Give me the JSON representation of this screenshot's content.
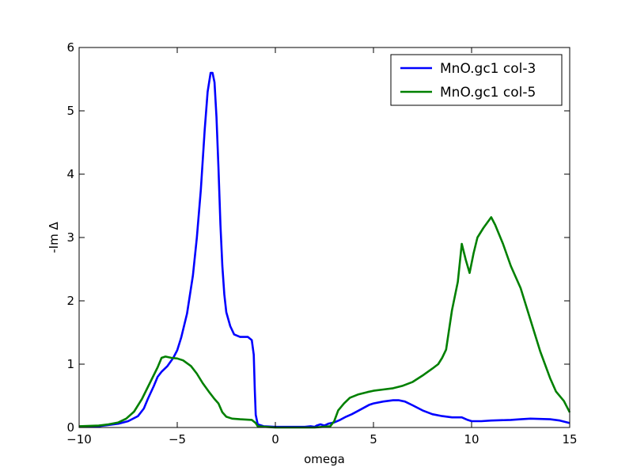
{
  "chart_data": {
    "type": "line",
    "title": "",
    "xlabel": "omega",
    "ylabel": "-Im Δ",
    "xlim": [
      -10,
      15
    ],
    "ylim": [
      0,
      6
    ],
    "xticks": [
      -10,
      -5,
      0,
      5,
      10,
      15
    ],
    "yticks": [
      0,
      1,
      2,
      3,
      4,
      5,
      6
    ],
    "xtick_labels": [
      "−10",
      "−5",
      "0",
      "5",
      "10",
      "15"
    ],
    "ytick_labels": [
      "0",
      "1",
      "2",
      "3",
      "4",
      "5",
      "6"
    ],
    "grid": false,
    "legend_position": "top-right",
    "series": [
      {
        "name": "MnO.gc1 col-3",
        "color": "#0000ff",
        "points": [
          [
            -10,
            0.01
          ],
          [
            -9,
            0.02
          ],
          [
            -8.5,
            0.04
          ],
          [
            -8,
            0.06
          ],
          [
            -7.5,
            0.1
          ],
          [
            -7,
            0.18
          ],
          [
            -6.7,
            0.3
          ],
          [
            -6.5,
            0.45
          ],
          [
            -6.2,
            0.65
          ],
          [
            -6.0,
            0.8
          ],
          [
            -5.8,
            0.88
          ],
          [
            -5.5,
            0.97
          ],
          [
            -5.2,
            1.1
          ],
          [
            -5.0,
            1.22
          ],
          [
            -4.8,
            1.42
          ],
          [
            -4.5,
            1.8
          ],
          [
            -4.2,
            2.4
          ],
          [
            -4.0,
            3.0
          ],
          [
            -3.8,
            3.75
          ],
          [
            -3.6,
            4.7
          ],
          [
            -3.45,
            5.3
          ],
          [
            -3.3,
            5.6
          ],
          [
            -3.2,
            5.6
          ],
          [
            -3.1,
            5.45
          ],
          [
            -3.0,
            4.9
          ],
          [
            -2.9,
            4.1
          ],
          [
            -2.8,
            3.2
          ],
          [
            -2.7,
            2.55
          ],
          [
            -2.6,
            2.1
          ],
          [
            -2.5,
            1.82
          ],
          [
            -2.3,
            1.6
          ],
          [
            -2.1,
            1.47
          ],
          [
            -1.8,
            1.43
          ],
          [
            -1.4,
            1.43
          ],
          [
            -1.2,
            1.38
          ],
          [
            -1.1,
            1.15
          ],
          [
            -1.05,
            0.6
          ],
          [
            -1.0,
            0.2
          ],
          [
            -0.9,
            0.05
          ],
          [
            -0.6,
            0.02
          ],
          [
            0,
            0.01
          ],
          [
            1.0,
            0.01
          ],
          [
            1.5,
            0.01
          ],
          [
            1.8,
            0.02
          ],
          [
            2.0,
            0.01
          ],
          [
            2.1,
            0.03
          ],
          [
            2.3,
            0.05
          ],
          [
            2.5,
            0.03
          ],
          [
            2.7,
            0.06
          ],
          [
            3.0,
            0.08
          ],
          [
            3.3,
            0.12
          ],
          [
            3.6,
            0.17
          ],
          [
            3.9,
            0.21
          ],
          [
            4.2,
            0.26
          ],
          [
            4.5,
            0.31
          ],
          [
            4.8,
            0.36
          ],
          [
            5.0,
            0.38
          ],
          [
            5.5,
            0.41
          ],
          [
            6.0,
            0.43
          ],
          [
            6.3,
            0.43
          ],
          [
            6.6,
            0.41
          ],
          [
            7.0,
            0.35
          ],
          [
            7.5,
            0.27
          ],
          [
            8.0,
            0.21
          ],
          [
            8.5,
            0.18
          ],
          [
            9.0,
            0.16
          ],
          [
            9.5,
            0.16
          ],
          [
            9.8,
            0.12
          ],
          [
            10.0,
            0.1
          ],
          [
            10.5,
            0.1
          ],
          [
            11.0,
            0.11
          ],
          [
            12.0,
            0.12
          ],
          [
            12.5,
            0.13
          ],
          [
            13.0,
            0.14
          ],
          [
            14.0,
            0.13
          ],
          [
            14.5,
            0.11
          ],
          [
            15.0,
            0.07
          ]
        ]
      },
      {
        "name": "MnO.gc1 col-5",
        "color": "#008000",
        "points": [
          [
            -10,
            0.02
          ],
          [
            -9,
            0.03
          ],
          [
            -8.5,
            0.05
          ],
          [
            -8,
            0.08
          ],
          [
            -7.6,
            0.14
          ],
          [
            -7.2,
            0.25
          ],
          [
            -6.8,
            0.45
          ],
          [
            -6.4,
            0.7
          ],
          [
            -6.0,
            0.95
          ],
          [
            -5.8,
            1.1
          ],
          [
            -5.6,
            1.12
          ],
          [
            -5.3,
            1.1
          ],
          [
            -5.0,
            1.09
          ],
          [
            -4.7,
            1.06
          ],
          [
            -4.3,
            0.97
          ],
          [
            -4.0,
            0.85
          ],
          [
            -3.7,
            0.7
          ],
          [
            -3.4,
            0.57
          ],
          [
            -3.1,
            0.45
          ],
          [
            -2.9,
            0.38
          ],
          [
            -2.7,
            0.24
          ],
          [
            -2.5,
            0.17
          ],
          [
            -2.2,
            0.14
          ],
          [
            -1.8,
            0.13
          ],
          [
            -1.2,
            0.12
          ],
          [
            -1.0,
            0.07
          ],
          [
            -0.9,
            0.02
          ],
          [
            -0.5,
            0.01
          ],
          [
            0,
            0.0
          ],
          [
            2.0,
            0.0
          ],
          [
            2.8,
            0.02
          ],
          [
            3.0,
            0.1
          ],
          [
            3.2,
            0.27
          ],
          [
            3.5,
            0.38
          ],
          [
            3.8,
            0.47
          ],
          [
            4.2,
            0.52
          ],
          [
            4.7,
            0.56
          ],
          [
            5.0,
            0.58
          ],
          [
            5.5,
            0.6
          ],
          [
            6.0,
            0.62
          ],
          [
            6.5,
            0.66
          ],
          [
            7.0,
            0.72
          ],
          [
            7.5,
            0.82
          ],
          [
            8.0,
            0.93
          ],
          [
            8.3,
            1.0
          ],
          [
            8.5,
            1.1
          ],
          [
            8.7,
            1.23
          ],
          [
            9.0,
            1.85
          ],
          [
            9.3,
            2.3
          ],
          [
            9.5,
            2.9
          ],
          [
            9.7,
            2.65
          ],
          [
            9.9,
            2.44
          ],
          [
            10.1,
            2.75
          ],
          [
            10.3,
            3.0
          ],
          [
            10.6,
            3.15
          ],
          [
            11.0,
            3.32
          ],
          [
            11.2,
            3.2
          ],
          [
            11.6,
            2.9
          ],
          [
            12.0,
            2.55
          ],
          [
            12.5,
            2.2
          ],
          [
            13.0,
            1.7
          ],
          [
            13.5,
            1.2
          ],
          [
            14.0,
            0.78
          ],
          [
            14.3,
            0.57
          ],
          [
            14.7,
            0.42
          ],
          [
            15.0,
            0.24
          ]
        ]
      }
    ]
  }
}
